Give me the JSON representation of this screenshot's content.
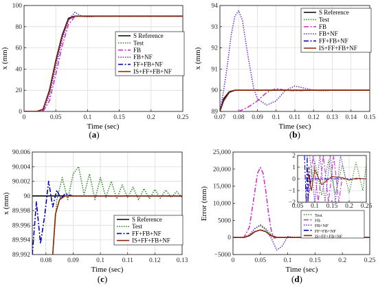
{
  "chart_data": [
    {
      "type": "line",
      "panel": "a",
      "caption": "(a)",
      "xlabel": "Time (sec)",
      "ylabel": "x (mm)",
      "xlim": [
        0,
        0.25
      ],
      "ylim": [
        0,
        100
      ],
      "xticks": [
        "0",
        "0.05",
        "0.1",
        "0.15",
        "0.2",
        "0.25"
      ],
      "yticks": [
        "0",
        "20",
        "40",
        "60",
        "80",
        "100"
      ],
      "grid": true,
      "legend": {
        "placement": "center-right"
      },
      "series": [
        {
          "name": "S Reference",
          "color": "#000000",
          "dash": "solid",
          "x": [
            0,
            0.02,
            0.03,
            0.04,
            0.05,
            0.06,
            0.07,
            0.08,
            0.1,
            0.25
          ],
          "y": [
            0,
            0,
            2,
            20,
            48,
            72,
            88,
            90,
            90,
            90
          ]
        },
        {
          "name": "Test",
          "color": "#2e8b22",
          "dash": "dot",
          "x": [
            0,
            0.025,
            0.03,
            0.04,
            0.05,
            0.06,
            0.07,
            0.08,
            0.1,
            0.25
          ],
          "y": [
            0,
            0,
            2,
            19,
            47,
            71,
            87,
            90,
            90,
            90
          ]
        },
        {
          "name": "FB",
          "color": "#cc33cc",
          "dash": "dashdot",
          "x": [
            0,
            0.03,
            0.04,
            0.05,
            0.06,
            0.07,
            0.08,
            0.09,
            0.1,
            0.25
          ],
          "y": [
            0,
            0,
            10,
            35,
            62,
            82,
            89.6,
            90.1,
            90,
            90
          ]
        },
        {
          "name": "FB+NF",
          "color": "#6633cc",
          "dash": "dot",
          "x": [
            0,
            0.025,
            0.03,
            0.04,
            0.05,
            0.06,
            0.07,
            0.08,
            0.09,
            0.1,
            0.12,
            0.25
          ],
          "y": [
            0,
            0,
            1,
            15,
            42,
            68,
            86,
            93.7,
            90,
            89.2,
            90.1,
            90
          ]
        },
        {
          "name": "FF+FB+NF",
          "color": "#0000b4",
          "dash": "dashdot",
          "x": [
            0,
            0.02,
            0.03,
            0.04,
            0.05,
            0.06,
            0.07,
            0.08,
            0.1,
            0.25
          ],
          "y": [
            0,
            0,
            2,
            20,
            48,
            72,
            88,
            90,
            90,
            90
          ]
        },
        {
          "name": "IS+FF+FB+NF",
          "color": "#8b2500",
          "dash": "solid",
          "x": [
            0,
            0.02,
            0.03,
            0.04,
            0.05,
            0.06,
            0.07,
            0.08,
            0.1,
            0.25
          ],
          "y": [
            0,
            0,
            2,
            19,
            47,
            71,
            87,
            90,
            90,
            90
          ]
        }
      ]
    },
    {
      "type": "line",
      "panel": "b",
      "caption": "(b)",
      "xlabel": "Time (sec)",
      "ylabel": "x (mm)",
      "xlim": [
        0.07,
        0.15
      ],
      "ylim": [
        89,
        94
      ],
      "xticks": [
        "0.07",
        "0.08",
        "0.09",
        "0.1",
        "0.11",
        "0.12",
        "0.13",
        "0.14",
        "0.15"
      ],
      "yticks": [
        "89",
        "90",
        "91",
        "92",
        "93",
        "94"
      ],
      "grid": true,
      "legend": {
        "placement": "top-right"
      },
      "series": [
        {
          "name": "S Reference",
          "color": "#000000",
          "dash": "solid",
          "x": [
            0.07,
            0.072,
            0.075,
            0.078,
            0.08,
            0.15
          ],
          "y": [
            89.0,
            89.6,
            89.93,
            90.0,
            90.0,
            90.0
          ]
        },
        {
          "name": "Test",
          "color": "#2e8b22",
          "dash": "dot",
          "x": [
            0.07,
            0.072,
            0.075,
            0.078,
            0.08,
            0.15
          ],
          "y": [
            89.0,
            89.5,
            89.9,
            90.0,
            90.0,
            90.0
          ]
        },
        {
          "name": "FB",
          "color": "#cc33cc",
          "dash": "dashdot",
          "x": [
            0.08,
            0.085,
            0.09,
            0.095,
            0.1,
            0.105,
            0.11,
            0.12,
            0.13,
            0.15
          ],
          "y": [
            89.0,
            89.2,
            89.5,
            89.9,
            90.08,
            90.0,
            89.98,
            90.0,
            90.0,
            90.0
          ]
        },
        {
          "name": "FB+NF",
          "color": "#6633cc",
          "dash": "dot",
          "x": [
            0.07,
            0.072,
            0.074,
            0.076,
            0.078,
            0.08,
            0.082,
            0.085,
            0.088,
            0.09,
            0.095,
            0.1,
            0.105,
            0.11,
            0.115,
            0.12,
            0.125,
            0.13,
            0.14,
            0.15
          ],
          "y": [
            89.0,
            90.0,
            91.2,
            92.6,
            93.5,
            93.75,
            93.3,
            91.6,
            90.1,
            89.6,
            89.3,
            89.5,
            90.0,
            90.2,
            90.1,
            90.0,
            89.98,
            90.0,
            90.0,
            90.0
          ]
        },
        {
          "name": "FF+FB+NF",
          "color": "#0000b4",
          "dash": "dashdot",
          "x": [
            0.07,
            0.072,
            0.075,
            0.078,
            0.08,
            0.15
          ],
          "y": [
            89.0,
            89.6,
            89.93,
            90.0,
            90.0,
            90.0
          ]
        },
        {
          "name": "IS+FF+FB+NF",
          "color": "#8b2500",
          "dash": "solid",
          "x": [
            0.07,
            0.072,
            0.075,
            0.078,
            0.08,
            0.15
          ],
          "y": [
            89.0,
            89.5,
            89.9,
            90.0,
            90.0,
            90.0
          ]
        }
      ]
    },
    {
      "type": "line",
      "panel": "c",
      "caption": "(c)",
      "xlabel": "Time (sec)",
      "ylabel": "x (mm)",
      "xlim": [
        0.075,
        0.13
      ],
      "ylim": [
        89.992,
        90.006
      ],
      "xticks": [
        "0.08",
        "0.09",
        "0.1",
        "0.11",
        "0.12",
        "0.13"
      ],
      "yticks": [
        "89.992",
        "89.994",
        "89.996",
        "89.998",
        "90",
        "90.002",
        "90.004",
        "90.006"
      ],
      "grid": true,
      "legend": {
        "placement": "bottom-right"
      },
      "series": [
        {
          "name": "S Reference",
          "color": "#000000",
          "dash": "solid",
          "x": [
            0.075,
            0.076,
            0.13
          ],
          "y": [
            90.0,
            90.0,
            90.0
          ]
        },
        {
          "name": "Test",
          "color": "#2e8b22",
          "dash": "dot",
          "x": [
            0.0825,
            0.084,
            0.086,
            0.088,
            0.09,
            0.092,
            0.094,
            0.096,
            0.098,
            0.1,
            0.102,
            0.104,
            0.106,
            0.108,
            0.11,
            0.112,
            0.114,
            0.116,
            0.118,
            0.12,
            0.122,
            0.124,
            0.126,
            0.128,
            0.13
          ],
          "y": [
            89.992,
            89.9995,
            90.0025,
            89.9995,
            90.003,
            90.004,
            90.0002,
            90.003,
            89.9995,
            90.0025,
            89.9998,
            90.002,
            89.9996,
            90.0015,
            89.9998,
            90.0012,
            89.9995,
            90.001,
            89.9996,
            90.0009,
            89.9997,
            90.0008,
            89.9998,
            90.0006,
            89.9998
          ]
        },
        {
          "name": "FF+FB+NF",
          "color": "#0000b4",
          "dash": "dashdot",
          "x": [
            0.075,
            0.0765,
            0.078,
            0.0795,
            0.081,
            0.0825,
            0.084,
            0.0855,
            0.087,
            0.09,
            0.095,
            0.13
          ],
          "y": [
            89.992,
            89.9992,
            89.9935,
            89.9972,
            90.002,
            89.9985,
            90.0008,
            89.9996,
            90.0003,
            90.0,
            90.0,
            90.0
          ]
        },
        {
          "name": "IS+FF+FB+NF",
          "color": "#8b2500",
          "dash": "solid",
          "x": [
            0.0825,
            0.0835,
            0.085,
            0.087,
            0.09,
            0.095,
            0.13
          ],
          "y": [
            89.992,
            89.9975,
            89.9995,
            90.0,
            90.0,
            90.0,
            90.0
          ]
        }
      ]
    },
    {
      "type": "line",
      "panel": "d",
      "caption": "(d)",
      "xlabel": "Time (sec)",
      "ylabel": "Error (mm)",
      "xlim": [
        0,
        0.25
      ],
      "ylim": [
        -5000,
        25000
      ],
      "xticks": [
        "0",
        "0.05",
        "0.1",
        "0.15",
        "0.2",
        "0.25"
      ],
      "yticks": [
        "−5000",
        "0",
        "5000",
        "10,000",
        "15,000",
        "20,000",
        "25,000"
      ],
      "grid": false,
      "legend": {
        "placement": "bottom-left"
      },
      "series": [
        {
          "name": "Test",
          "color": "#2e8b22",
          "dash": "dot",
          "x": [
            0,
            0.02,
            0.03,
            0.04,
            0.05,
            0.06,
            0.07,
            0.08,
            0.1,
            0.25
          ],
          "y": [
            0,
            0,
            800,
            2600,
            3700,
            2600,
            800,
            0,
            0,
            0
          ]
        },
        {
          "name": "FB",
          "color": "#cc33cc",
          "dash": "dashdot",
          "x": [
            0,
            0.02,
            0.03,
            0.04,
            0.045,
            0.05,
            0.055,
            0.06,
            0.065,
            0.07,
            0.075,
            0.08,
            0.085,
            0.09,
            0.1,
            0.25
          ],
          "y": [
            0,
            0,
            3000,
            13500,
            18800,
            20500,
            18800,
            13500,
            7000,
            2000,
            -200,
            0,
            0,
            0,
            0,
            0
          ]
        },
        {
          "name": "FB+NF",
          "color": "#6633cc",
          "dash": "dot",
          "x": [
            0,
            0.02,
            0.03,
            0.04,
            0.05,
            0.06,
            0.07,
            0.08,
            0.09,
            0.1,
            0.11,
            0.25
          ],
          "y": [
            0,
            0,
            700,
            2600,
            3500,
            2200,
            -200,
            -3700,
            -2500,
            300,
            0,
            0
          ]
        },
        {
          "name": "FF+FB+NF",
          "color": "#0000b4",
          "dash": "dashdot",
          "x": [
            0,
            0.02,
            0.03,
            0.04,
            0.05,
            0.06,
            0.07,
            0.08,
            0.25
          ],
          "y": [
            0,
            0,
            500,
            1700,
            2200,
            1700,
            500,
            0,
            0
          ]
        },
        {
          "name": "IS+FF+FB+NF",
          "color": "#8b2500",
          "dash": "solid",
          "x": [
            0,
            0.02,
            0.03,
            0.04,
            0.05,
            0.06,
            0.07,
            0.08,
            0.25
          ],
          "y": [
            0,
            0,
            500,
            1700,
            2200,
            1700,
            500,
            0,
            0
          ]
        }
      ],
      "inset": {
        "xlim": [
          0.05,
          0.25
        ],
        "ylim": [
          -2,
          2
        ],
        "xticks": [
          "0.05",
          "0.1",
          "0.15",
          "0.2",
          "0.25"
        ],
        "yticks": [
          "−2",
          "−1",
          "0",
          "1",
          "2"
        ],
        "grid": true,
        "series": [
          {
            "name": "Test",
            "color": "#2e8b22",
            "dash": "dot",
            "x": [
              0.08,
              0.1,
              0.12,
              0.14,
              0.16,
              0.18,
              0.2,
              0.22,
              0.24,
              0.25
            ],
            "y": [
              -1.8,
              1.5,
              -1.4,
              1.6,
              -1.3,
              1.2,
              -1.2,
              1.4,
              -1.0,
              1.3
            ]
          },
          {
            "name": "FB",
            "color": "#cc33cc",
            "dash": "dashdot",
            "x": [
              0.08,
              0.095,
              0.11,
              0.125,
              0.14,
              0.155,
              0.17,
              0.18
            ],
            "y": [
              -2,
              2,
              -2,
              2,
              -2,
              2,
              -2,
              0.2
            ]
          },
          {
            "name": "FB+NF",
            "color": "#6633cc",
            "dash": "dot",
            "x": [
              0.085,
              0.1,
              0.115,
              0.13,
              0.145,
              0.16,
              0.175,
              0.19
            ],
            "y": [
              2,
              -2,
              2,
              -2,
              2,
              -2,
              2,
              0
            ]
          },
          {
            "name": "FF+FB+NF",
            "color": "#0000b4",
            "dash": "dashdot",
            "x": [
              0.07,
              0.075,
              0.078,
              0.08,
              0.083,
              0.086,
              0.09,
              0.25
            ],
            "y": [
              2,
              -2,
              2,
              -2,
              1,
              -0.5,
              0,
              0
            ]
          },
          {
            "name": "IS+FF+FB+NF",
            "color": "#8b2500",
            "dash": "solid",
            "x": [
              0.08,
              0.09,
              0.1,
              0.12,
              0.15,
              0.18,
              0.2,
              0.22,
              0.25
            ],
            "y": [
              0.5,
              -1,
              0.8,
              -0.5,
              0.2,
              0.1,
              -0.1,
              0.05,
              0
            ]
          }
        ]
      }
    }
  ]
}
